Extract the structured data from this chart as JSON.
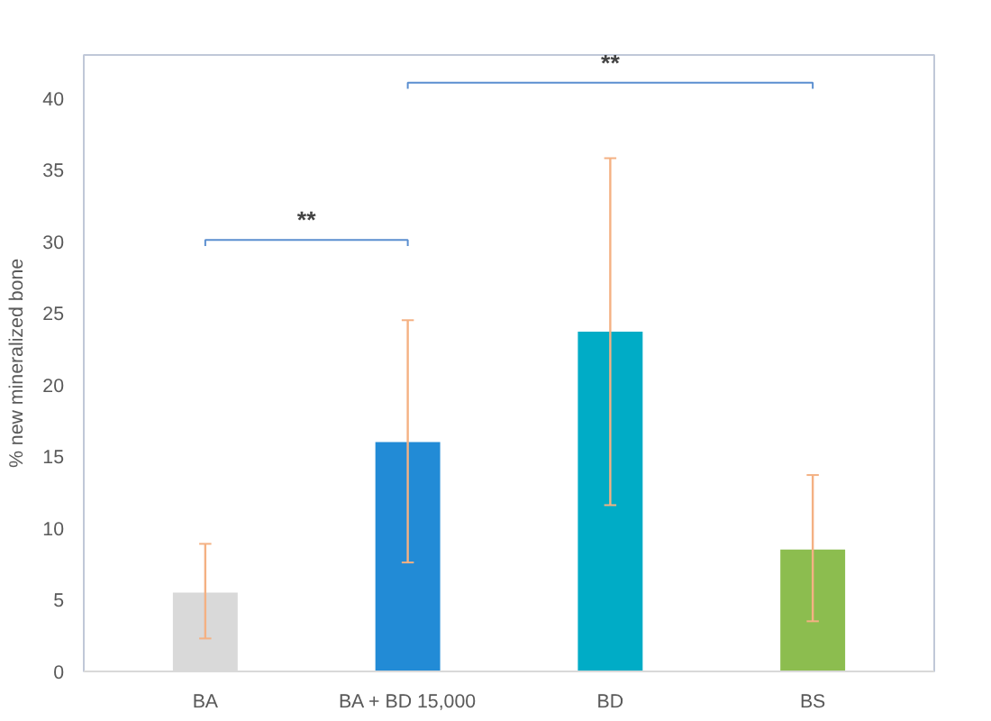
{
  "chart_data": {
    "type": "bar",
    "ylabel": "% new mineralized bone",
    "categories": [
      "BA",
      "BA + BD 15,000",
      "BD",
      "BS"
    ],
    "values": [
      5.5,
      16.0,
      23.7,
      8.5
    ],
    "colors": [
      "#d9d9d9",
      "#228bd6",
      "#00acc6",
      "#8cbd4f"
    ],
    "errors": [
      [
        2.3,
        8.9
      ],
      [
        7.6,
        24.5
      ],
      [
        11.6,
        35.8
      ],
      [
        3.5,
        13.7
      ]
    ],
    "ylim": [
      0,
      43
    ],
    "yticks": [
      0,
      5,
      10,
      15,
      20,
      25,
      30,
      35,
      40
    ],
    "grid": false,
    "annotations": [
      "**",
      "**"
    ]
  }
}
